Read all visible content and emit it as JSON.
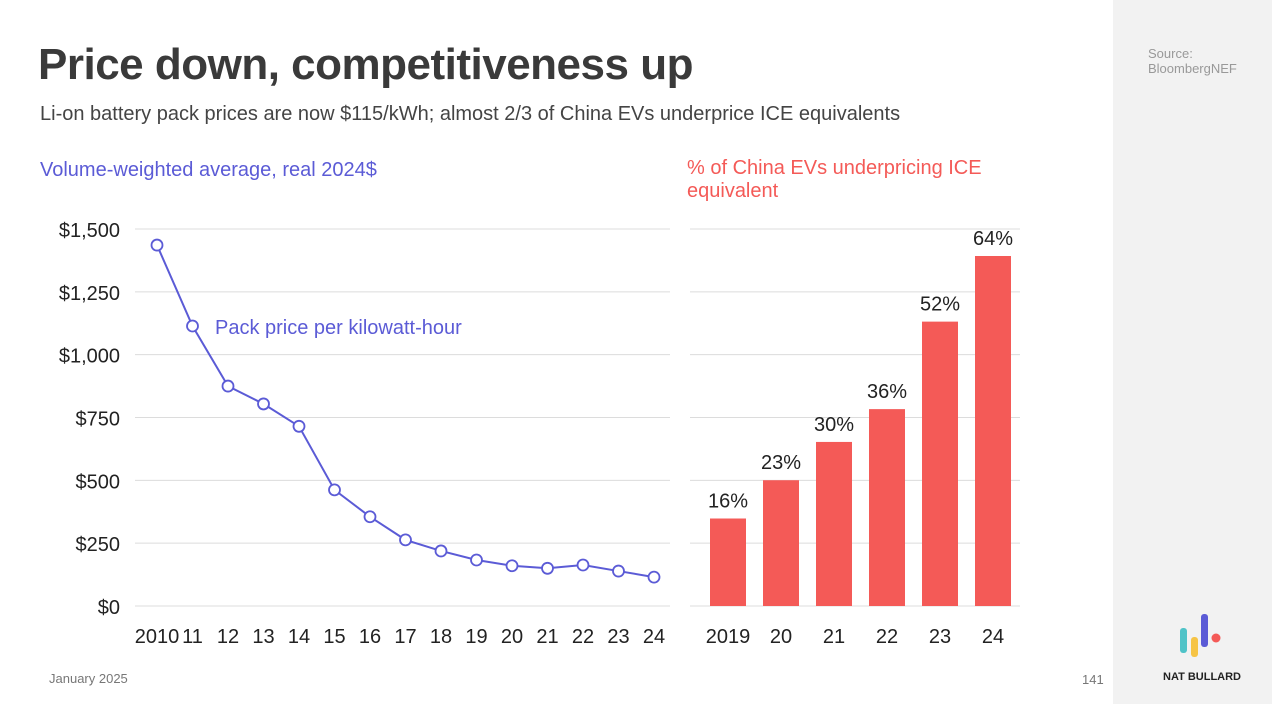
{
  "header": {
    "title": "Price down, competitiveness up",
    "subtitle": "Li-on battery pack prices are now $115/kWh; almost 2/3 of China EVs underprice ICE equivalents",
    "source_line1": "Source:",
    "source_line2": "BloombergNEF"
  },
  "footer": {
    "date": "January 2025",
    "page": "141",
    "brand": "NAT BULLARD"
  },
  "colors": {
    "line": "#5b5bd6",
    "bar": "#f45a57",
    "title": "#3a3a3a"
  },
  "chart_data": [
    {
      "type": "line",
      "title": "Volume-weighted average, real 2024$",
      "series_label": "Pack price per kilowatt-hour",
      "x": [
        "2010",
        "11",
        "12",
        "13",
        "14",
        "15",
        "16",
        "17",
        "18",
        "19",
        "20",
        "21",
        "22",
        "23",
        "24"
      ],
      "values": [
        1436,
        1114,
        875,
        804,
        715,
        462,
        355,
        263,
        219,
        183,
        160,
        150,
        163,
        139,
        115
      ],
      "ylim": [
        0,
        1500
      ],
      "yticks": [
        0,
        250,
        500,
        750,
        1000,
        1250,
        1500
      ],
      "ytick_labels": [
        "$0",
        "$250",
        "$500",
        "$750",
        "$1,000",
        "$1,250",
        "$1,500"
      ],
      "grid": true
    },
    {
      "type": "bar",
      "title": "% of China EVs underpricing ICE equivalent",
      "categories": [
        "2019",
        "20",
        "21",
        "22",
        "23",
        "24"
      ],
      "values": [
        16,
        23,
        30,
        36,
        52,
        64
      ],
      "data_labels": [
        "16%",
        "23%",
        "30%",
        "36%",
        "52%",
        "64%"
      ],
      "ylim": [
        0,
        70
      ]
    }
  ]
}
